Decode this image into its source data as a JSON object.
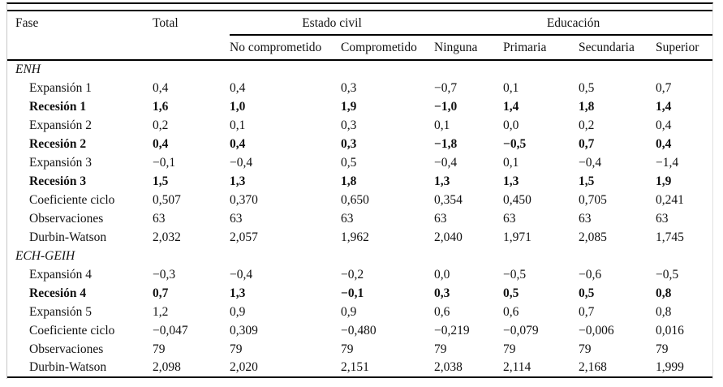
{
  "table": {
    "headers": {
      "fase": "Fase",
      "total": "Total",
      "estado_civil": "Estado civil",
      "educacion": "Educación",
      "sub": [
        "No comprometido",
        "Comprometido",
        "Ninguna",
        "Primaria",
        "Secundaria",
        "Superior"
      ]
    },
    "column_order": [
      "Total",
      "No comprometido",
      "Comprometido",
      "Ninguna",
      "Primaria",
      "Secundaria",
      "Superior"
    ],
    "sections": [
      {
        "title": "ENH",
        "rows": [
          {
            "label": "Expansión 1",
            "bold": false,
            "values": [
              "0,4",
              "0,4",
              "0,3",
              "−0,7",
              "0,1",
              "0,5",
              "0,7"
            ]
          },
          {
            "label": "Recesión 1",
            "bold": true,
            "values": [
              "1,6",
              "1,0",
              "1,9",
              "−1,0",
              "1,4",
              "1,8",
              "1,4"
            ]
          },
          {
            "label": "Expansión 2",
            "bold": false,
            "values": [
              "0,2",
              "0,1",
              "0,3",
              "0,1",
              "0,0",
              "0,2",
              "0,4"
            ]
          },
          {
            "label": "Recesión 2",
            "bold": true,
            "values": [
              "0,4",
              "0,4",
              "0,3",
              "−1,8",
              "−0,5",
              "0,7",
              "0,4"
            ]
          },
          {
            "label": "Expansión 3",
            "bold": false,
            "values": [
              "−0,1",
              "−0,4",
              "0,5",
              "−0,4",
              "0,1",
              "−0,4",
              "−1,4"
            ]
          },
          {
            "label": "Recesión 3",
            "bold": true,
            "values": [
              "1,5",
              "1,3",
              "1,8",
              "1,3",
              "1,3",
              "1,5",
              "1,9"
            ]
          },
          {
            "label": "Coeficiente ciclo",
            "bold": false,
            "values": [
              "0,507",
              "0,370",
              "0,650",
              "0,354",
              "0,450",
              "0,705",
              "0,241"
            ]
          },
          {
            "label": "Observaciones",
            "bold": false,
            "values": [
              "63",
              "63",
              "63",
              "63",
              "63",
              "63",
              "63"
            ]
          },
          {
            "label": "Durbin-Watson",
            "bold": false,
            "values": [
              "2,032",
              "2,057",
              "1,962",
              "2,040",
              "1,971",
              "2,085",
              "1,745"
            ]
          }
        ]
      },
      {
        "title": "ECH-GEIH",
        "rows": [
          {
            "label": "Expansión 4",
            "bold": false,
            "values": [
              "−0,3",
              "−0,4",
              "−0,2",
              "0,0",
              "−0,5",
              "−0,6",
              "−0,5"
            ]
          },
          {
            "label": "Recesión 4",
            "bold": true,
            "values": [
              "0,7",
              "1,3",
              "−0,1",
              "0,3",
              "0,5",
              "0,5",
              "0,8"
            ]
          },
          {
            "label": "Expansión 5",
            "bold": false,
            "values": [
              "1,2",
              "0,9",
              "0,9",
              "0,6",
              "0,6",
              "0,7",
              "0,8"
            ]
          },
          {
            "label": "Coeficiente ciclo",
            "bold": false,
            "values": [
              "−0,047",
              "0,309",
              "−0,480",
              "−0,219",
              "−0,079",
              "−0,006",
              "0,016"
            ]
          },
          {
            "label": "Observaciones",
            "bold": false,
            "values": [
              "79",
              "79",
              "79",
              "79",
              "79",
              "79",
              "79"
            ]
          },
          {
            "label": "Durbin-Watson",
            "bold": false,
            "values": [
              "2,098",
              "2,020",
              "2,151",
              "2,038",
              "2,114",
              "2,168",
              "1,999"
            ]
          }
        ]
      }
    ],
    "colors": {
      "text": "#111111",
      "rule": "#000000",
      "side_border": "#c6c6c6",
      "background": "#ffffff"
    }
  }
}
